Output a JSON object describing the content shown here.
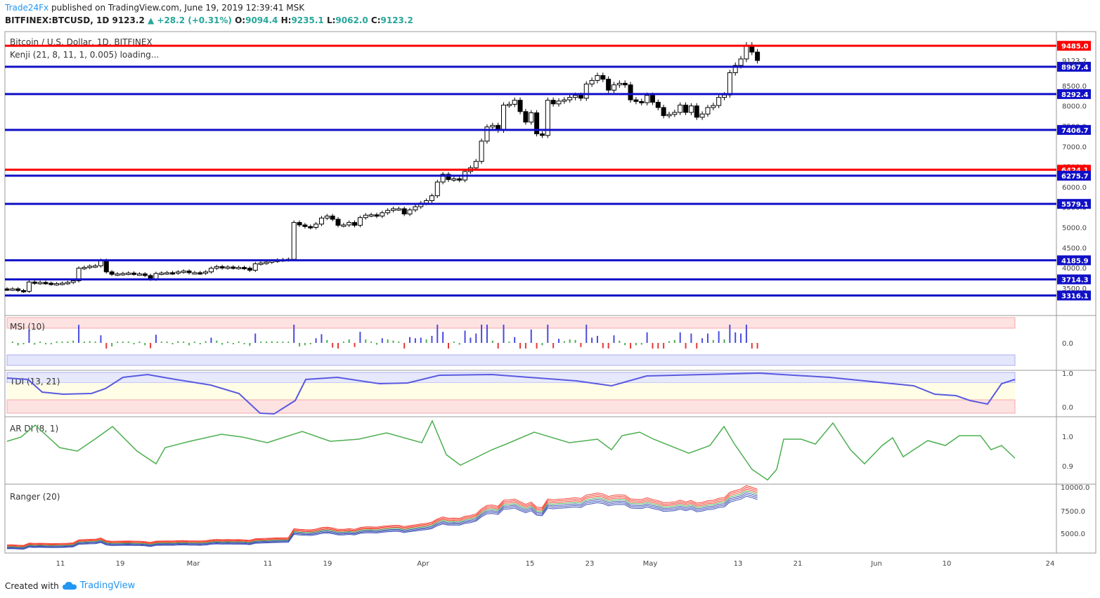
{
  "header": {
    "author": "Trade24Fx",
    "published_text": "published on TradingView.com, June 19, 2019 12:39:41 MSK",
    "symbol": "BITFINEX:BTCUSD, 1D",
    "last": "9123.2",
    "change": "+28.2 (+0.31%)",
    "o_label": "O:",
    "o": "9094.4",
    "h_label": "H:",
    "h": "9235.1",
    "l_label": "L:",
    "l": "9062.0",
    "c_label": "C:",
    "c": "9123.2"
  },
  "footer": {
    "created_with": "Created with",
    "brand": "TradingView"
  },
  "colors": {
    "red_level": "#ff0000",
    "blue_level": "#1010c8",
    "up": "#ffffff",
    "down": "#000000",
    "ranger_red": "#f44336",
    "ranger_blue": "#3f51b5",
    "ranger_green": "#4caf50"
  },
  "chart_data": {
    "type": "candlestick",
    "title": "Bitcoin / U.S. Dollar, 1D, BITFINEX",
    "indicator_label": "Kenji (21, 8, 11, 1, 0.005) loading...",
    "ylim": [
      3000,
      9800
    ],
    "y_ticks": [
      3500,
      4000,
      4500,
      5000,
      5500,
      6000,
      6500,
      7000,
      7500,
      8000,
      8500
    ],
    "x_labels": [
      "11",
      "19",
      "Mar",
      "11",
      "19",
      "Apr",
      "15",
      "23",
      "May",
      "13",
      "21",
      "Jun",
      "10",
      "24"
    ],
    "last_price": 9123.2,
    "levels": [
      {
        "value": 9485.0,
        "label": "9485.0",
        "color": "red"
      },
      {
        "value": 8967.4,
        "label": "8967.4",
        "color": "blue"
      },
      {
        "value": 8292.4,
        "label": "8292.4",
        "color": "blue"
      },
      {
        "value": 7406.7,
        "label": "7406.7",
        "color": "blue"
      },
      {
        "value": 6424.1,
        "label": "6424.1",
        "color": "red"
      },
      {
        "value": 6275.7,
        "label": "6275.7",
        "color": "blue"
      },
      {
        "value": 5579.1,
        "label": "5579.1",
        "color": "blue"
      },
      {
        "value": 4185.9,
        "label": "4185.9",
        "color": "blue"
      },
      {
        "value": 3714.3,
        "label": "3714.3",
        "color": "blue"
      },
      {
        "value": 3316.1,
        "label": "3316.1",
        "color": "blue"
      }
    ],
    "closes": [
      3470,
      3480,
      3440,
      3420,
      3650,
      3620,
      3640,
      3620,
      3600,
      3610,
      3620,
      3640,
      3680,
      3990,
      4010,
      4040,
      4050,
      4180,
      3900,
      3840,
      3850,
      3860,
      3870,
      3850,
      3850,
      3810,
      3720,
      3860,
      3870,
      3880,
      3870,
      3900,
      3920,
      3880,
      3880,
      3870,
      3900,
      3990,
      4030,
      4000,
      4020,
      4000,
      4010,
      3990,
      3940,
      4100,
      4120,
      4140,
      4170,
      4190,
      4200,
      4210,
      5120,
      5060,
      5020,
      5000,
      5080,
      5230,
      5280,
      5200,
      5050,
      5060,
      5120,
      5050,
      5240,
      5300,
      5310,
      5280,
      5360,
      5420,
      5460,
      5460,
      5330,
      5430,
      5510,
      5600,
      5660,
      5780,
      6120,
      6310,
      6180,
      6200,
      6170,
      6380,
      6470,
      6630,
      7130,
      7480,
      7520,
      7400,
      8020,
      8040,
      8140,
      7860,
      7600,
      7830,
      7310,
      7270,
      8140,
      8050,
      8120,
      8150,
      8210,
      8260,
      8190,
      8540,
      8630,
      8750,
      8660,
      8390,
      8520,
      8560,
      8520,
      8150,
      8110,
      8080,
      8260,
      8090,
      7960,
      7760,
      7790,
      7840,
      8020,
      7840,
      8000,
      7720,
      7800,
      7960,
      8010,
      8210,
      8270,
      8820,
      9000,
      9160,
      9500,
      9330,
      9123
    ]
  },
  "panels": {
    "msi": {
      "label": "MSI (10)",
      "zero_label": "0.0"
    },
    "tdi": {
      "label": "TDI (13, 21)",
      "ticks": [
        "1.0",
        "0.0"
      ]
    },
    "ardi": {
      "label": "AR DI (8, 1)",
      "ticks": [
        "1.0",
        "0.9"
      ]
    },
    "ranger": {
      "label": "Ranger (20)",
      "ticks": [
        "10000.0",
        "7500.0",
        "5000.0"
      ]
    }
  }
}
